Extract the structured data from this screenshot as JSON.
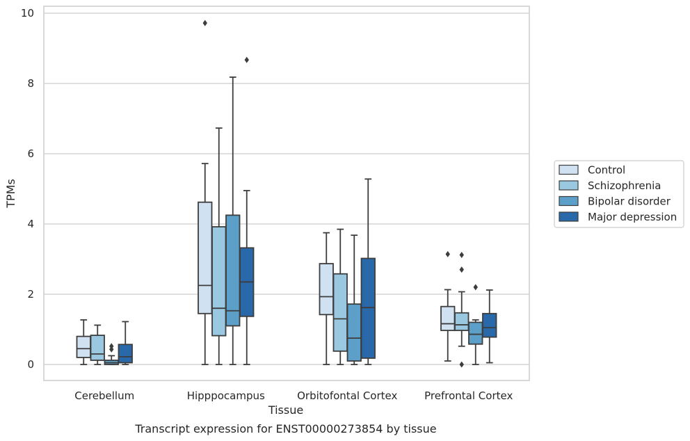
{
  "chart_data": {
    "type": "box",
    "xlabel": "Tissue",
    "ylabel": "TPMs",
    "caption": "Transcript expression for ENST00000273854 by tissue",
    "ylim": [
      -0.45,
      10.2
    ],
    "yticks": [
      0,
      2,
      4,
      6,
      8,
      10
    ],
    "grid": "horizontal",
    "legend_position": "right",
    "categories": [
      "Cerebellum",
      "Hipppocampus",
      "Orbitofontal Cortex",
      "Prefrontal Cortex"
    ],
    "series": [
      {
        "name": "Control",
        "color": "#d0e1f2",
        "boxes": [
          {
            "whislo": 0.0,
            "q1": 0.2,
            "med": 0.45,
            "q3": 0.8,
            "whishi": 1.27,
            "fliers": []
          },
          {
            "whislo": 0.0,
            "q1": 1.45,
            "med": 2.25,
            "q3": 4.62,
            "whishi": 5.72,
            "fliers": [
              9.72
            ]
          },
          {
            "whislo": 0.0,
            "q1": 1.42,
            "med": 1.93,
            "q3": 2.87,
            "whishi": 3.75,
            "fliers": []
          },
          {
            "whislo": 0.1,
            "q1": 0.97,
            "med": 1.16,
            "q3": 1.65,
            "whishi": 2.13,
            "fliers": [
              3.14
            ]
          }
        ]
      },
      {
        "name": "Schizophrenia",
        "color": "#9ac8e0",
        "boxes": [
          {
            "whislo": 0.0,
            "q1": 0.12,
            "med": 0.3,
            "q3": 0.83,
            "whishi": 1.12,
            "fliers": []
          },
          {
            "whislo": 0.0,
            "q1": 0.82,
            "med": 1.6,
            "q3": 3.92,
            "whishi": 6.73,
            "fliers": []
          },
          {
            "whislo": 0.0,
            "q1": 0.38,
            "med": 1.3,
            "q3": 2.58,
            "whishi": 3.85,
            "fliers": []
          },
          {
            "whislo": 0.52,
            "q1": 0.97,
            "med": 1.13,
            "q3": 1.47,
            "whishi": 2.07,
            "fliers": [
              3.12,
              2.7,
              0.0
            ]
          }
        ]
      },
      {
        "name": "Bipolar disorder",
        "color": "#5c9fc9",
        "boxes": [
          {
            "whislo": 0.0,
            "q1": 0.0,
            "med": 0.05,
            "q3": 0.12,
            "whishi": 0.25,
            "fliers": [
              0.52,
              0.43
            ]
          },
          {
            "whislo": 0.0,
            "q1": 1.1,
            "med": 1.53,
            "q3": 4.25,
            "whishi": 8.18,
            "fliers": []
          },
          {
            "whislo": 0.0,
            "q1": 0.1,
            "med": 0.75,
            "q3": 1.72,
            "whishi": 3.68,
            "fliers": []
          },
          {
            "whislo": 0.0,
            "q1": 0.58,
            "med": 0.86,
            "q3": 1.2,
            "whishi": 1.27,
            "fliers": [
              2.2
            ]
          }
        ]
      },
      {
        "name": "Major depression",
        "color": "#2a69a9",
        "boxes": [
          {
            "whislo": 0.0,
            "q1": 0.05,
            "med": 0.22,
            "q3": 0.57,
            "whishi": 1.22,
            "fliers": []
          },
          {
            "whislo": 0.0,
            "q1": 1.37,
            "med": 2.35,
            "q3": 3.32,
            "whishi": 4.95,
            "fliers": [
              8.67
            ]
          },
          {
            "whislo": 0.0,
            "q1": 0.18,
            "med": 1.62,
            "q3": 3.02,
            "whishi": 5.28,
            "fliers": []
          },
          {
            "whislo": 0.05,
            "q1": 0.78,
            "med": 1.05,
            "q3": 1.45,
            "whishi": 2.12,
            "fliers": []
          }
        ]
      }
    ]
  }
}
